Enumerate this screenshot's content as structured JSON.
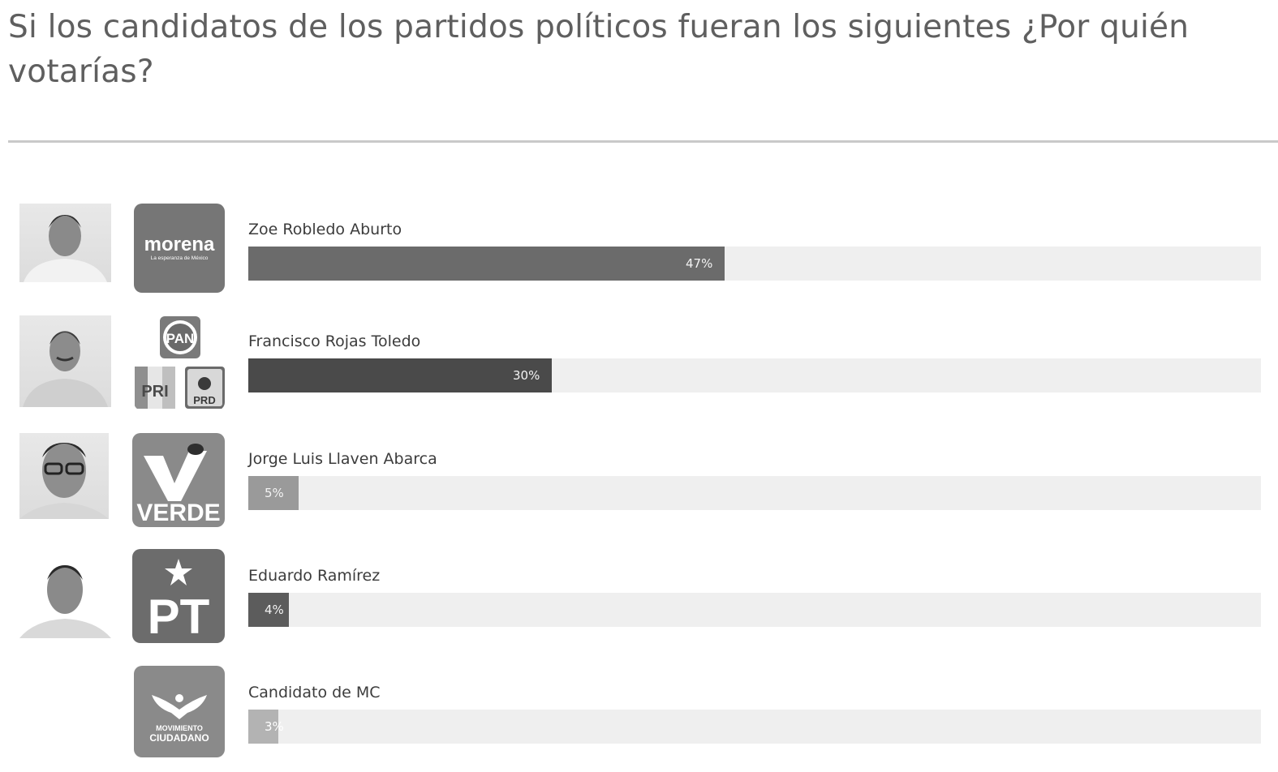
{
  "title": "Si los candidatos de los partidos políticos fueran los siguientes ¿Por quién votarías?",
  "chart_data": {
    "type": "bar",
    "orientation": "horizontal",
    "xlim": [
      0,
      100
    ],
    "categories": [
      "Zoe Robledo Aburto",
      "Francisco Rojas Toledo",
      "Jorge Luis Llaven Abarca",
      "Eduardo Ramírez",
      "Candidato de MC"
    ],
    "values": [
      47,
      30,
      5,
      4,
      3
    ],
    "value_labels": [
      "47%",
      "30%",
      "5%",
      "4%",
      "3%"
    ],
    "bar_colors": [
      "#6b6b6b",
      "#4a4a4a",
      "#9a9a9a",
      "#5c5c5c",
      "#b3b3b3"
    ],
    "track_color": "#efefef"
  },
  "parties": [
    {
      "name": "morena",
      "subtitle": "La esperanza de México"
    },
    {
      "logos": [
        "PAN",
        "PRI",
        "PRD"
      ]
    },
    {
      "name": "VERDE"
    },
    {
      "name": "PT"
    },
    {
      "name": "MOVIMIENTO",
      "name2": "CIUDADANO"
    }
  ]
}
